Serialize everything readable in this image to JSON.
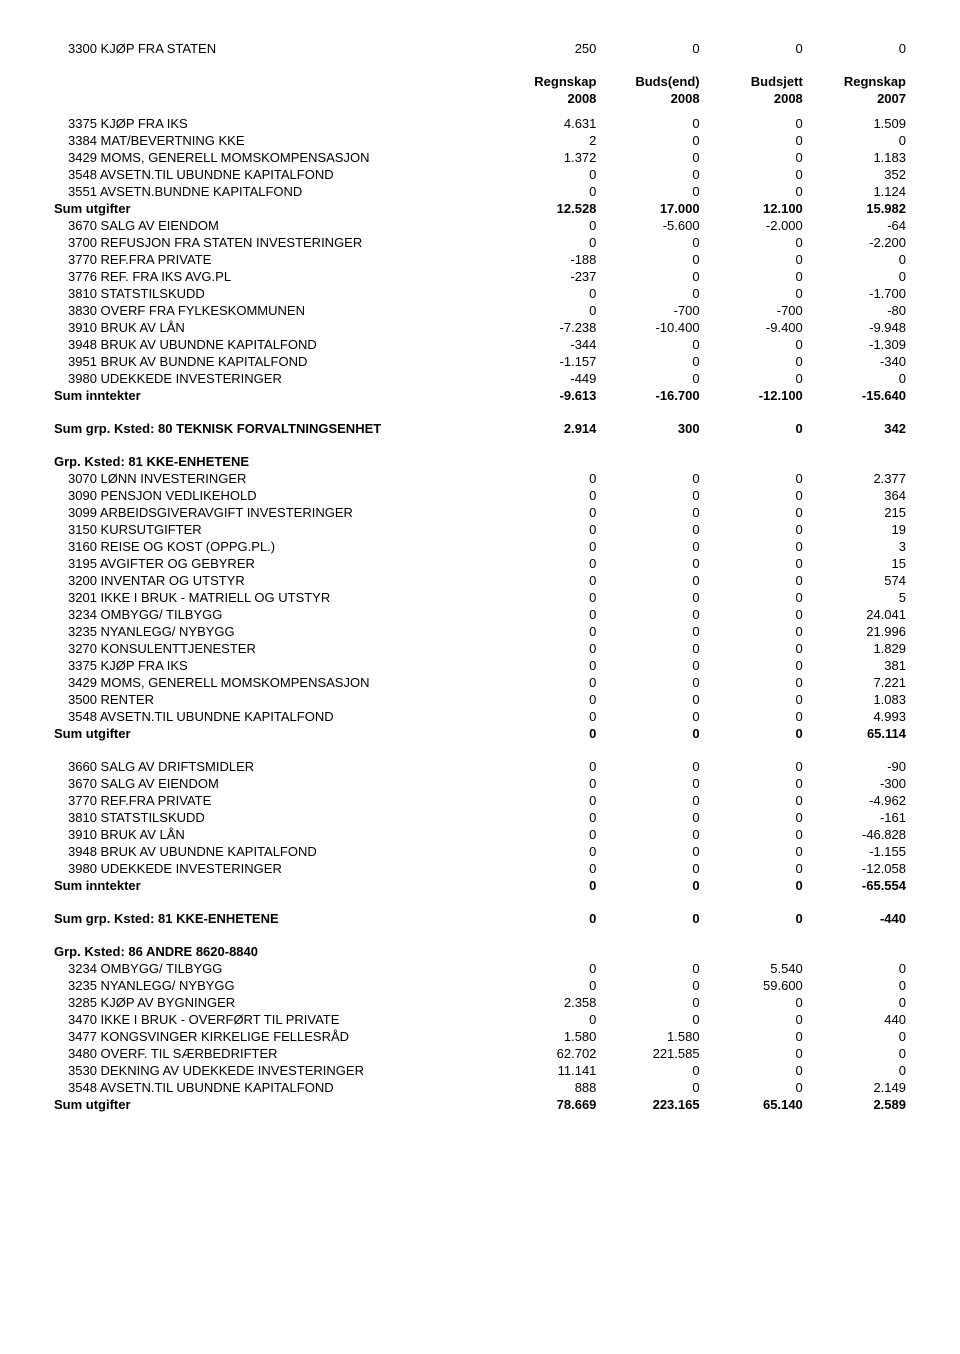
{
  "headers": {
    "c1a": "Regnskap",
    "c1b": "2008",
    "c2a": "Buds(end)",
    "c2b": "2008",
    "c3a": "Budsjett",
    "c3b": "2008",
    "c4a": "Regnskap",
    "c4b": "2007"
  },
  "top_row": {
    "label": "3300 KJØP FRA STATEN",
    "v1": "250",
    "v2": "0",
    "v3": "0",
    "v4": "0"
  },
  "block1": [
    {
      "label": "3375 KJØP FRA IKS",
      "v1": "4.631",
      "v2": "0",
      "v3": "0",
      "v4": "1.509"
    },
    {
      "label": "3384 MAT/BEVERTNING KKE",
      "v1": "2",
      "v2": "0",
      "v3": "0",
      "v4": "0"
    },
    {
      "label": "3429 MOMS, GENERELL MOMSKOMPENSASJON",
      "v1": "1.372",
      "v2": "0",
      "v3": "0",
      "v4": "1.183"
    },
    {
      "label": "3548 AVSETN.TIL UBUNDNE KAPITALFOND",
      "v1": "0",
      "v2": "0",
      "v3": "0",
      "v4": "352"
    },
    {
      "label": "3551 AVSETN.BUNDNE KAPITALFOND",
      "v1": "0",
      "v2": "0",
      "v3": "0",
      "v4": "1.124"
    }
  ],
  "block1_sum": {
    "label": "Sum utgifter",
    "v1": "12.528",
    "v2": "17.000",
    "v3": "12.100",
    "v4": "15.982"
  },
  "block2": [
    {
      "label": "3670 SALG AV EIENDOM",
      "v1": "0",
      "v2": "-5.600",
      "v3": "-2.000",
      "v4": "-64"
    },
    {
      "label": "3700 REFUSJON FRA STATEN INVESTERINGER",
      "v1": "0",
      "v2": "0",
      "v3": "0",
      "v4": "-2.200"
    },
    {
      "label": "3770 REF.FRA PRIVATE",
      "v1": "-188",
      "v2": "0",
      "v3": "0",
      "v4": "0"
    },
    {
      "label": "3776 REF. FRA IKS AVG.PL",
      "v1": "-237",
      "v2": "0",
      "v3": "0",
      "v4": "0"
    },
    {
      "label": "3810 STATSTILSKUDD",
      "v1": "0",
      "v2": "0",
      "v3": "0",
      "v4": "-1.700"
    },
    {
      "label": "3830 OVERF FRA FYLKESKOMMUNEN",
      "v1": "0",
      "v2": "-700",
      "v3": "-700",
      "v4": "-80"
    },
    {
      "label": "3910 BRUK AV LÅN",
      "v1": "-7.238",
      "v2": "-10.400",
      "v3": "-9.400",
      "v4": "-9.948"
    },
    {
      "label": "3948 BRUK AV UBUNDNE KAPITALFOND",
      "v1": "-344",
      "v2": "0",
      "v3": "0",
      "v4": "-1.309"
    },
    {
      "label": "3951 BRUK AV BUNDNE KAPITALFOND",
      "v1": "-1.157",
      "v2": "0",
      "v3": "0",
      "v4": "-340"
    },
    {
      "label": "3980 UDEKKEDE INVESTERINGER",
      "v1": "-449",
      "v2": "0",
      "v3": "0",
      "v4": "0"
    }
  ],
  "block2_sum": {
    "label": "Sum inntekter",
    "v1": "-9.613",
    "v2": "-16.700",
    "v3": "-12.100",
    "v4": "-15.640"
  },
  "grp80": {
    "label": "Sum grp. Ksted: 80 TEKNISK FORVALTNINGSENHET",
    "v1": "2.914",
    "v2": "300",
    "v3": "0",
    "v4": "342"
  },
  "grp81_title": "Grp. Ksted: 81 KKE-ENHETENE",
  "block3": [
    {
      "label": "3070 LØNN INVESTERINGER",
      "v1": "0",
      "v2": "0",
      "v3": "0",
      "v4": "2.377"
    },
    {
      "label": "3090 PENSJON VEDLIKEHOLD",
      "v1": "0",
      "v2": "0",
      "v3": "0",
      "v4": "364"
    },
    {
      "label": "3099 ARBEIDSGIVERAVGIFT INVESTERINGER",
      "v1": "0",
      "v2": "0",
      "v3": "0",
      "v4": "215"
    },
    {
      "label": "3150 KURSUTGIFTER",
      "v1": "0",
      "v2": "0",
      "v3": "0",
      "v4": "19"
    },
    {
      "label": "3160 REISE OG KOST (OPPG.PL.)",
      "v1": "0",
      "v2": "0",
      "v3": "0",
      "v4": "3"
    },
    {
      "label": "3195 AVGIFTER OG GEBYRER",
      "v1": "0",
      "v2": "0",
      "v3": "0",
      "v4": "15"
    },
    {
      "label": "3200 INVENTAR OG UTSTYR",
      "v1": "0",
      "v2": "0",
      "v3": "0",
      "v4": "574"
    },
    {
      "label": "3201 IKKE I BRUK - MATRIELL OG UTSTYR",
      "v1": "0",
      "v2": "0",
      "v3": "0",
      "v4": "5"
    },
    {
      "label": "3234 OMBYGG/ TILBYGG",
      "v1": "0",
      "v2": "0",
      "v3": "0",
      "v4": "24.041"
    },
    {
      "label": "3235 NYANLEGG/ NYBYGG",
      "v1": "0",
      "v2": "0",
      "v3": "0",
      "v4": "21.996"
    },
    {
      "label": "3270 KONSULENTTJENESTER",
      "v1": "0",
      "v2": "0",
      "v3": "0",
      "v4": "1.829"
    },
    {
      "label": "3375 KJØP FRA IKS",
      "v1": "0",
      "v2": "0",
      "v3": "0",
      "v4": "381"
    },
    {
      "label": "3429 MOMS, GENERELL MOMSKOMPENSASJON",
      "v1": "0",
      "v2": "0",
      "v3": "0",
      "v4": "7.221"
    },
    {
      "label": "3500 RENTER",
      "v1": "0",
      "v2": "0",
      "v3": "0",
      "v4": "1.083"
    },
    {
      "label": "3548 AVSETN.TIL UBUNDNE KAPITALFOND",
      "v1": "0",
      "v2": "0",
      "v3": "0",
      "v4": "4.993"
    }
  ],
  "block3_sum": {
    "label": "Sum utgifter",
    "v1": "0",
    "v2": "0",
    "v3": "0",
    "v4": "65.114"
  },
  "block4": [
    {
      "label": "3660 SALG AV DRIFTSMIDLER",
      "v1": "0",
      "v2": "0",
      "v3": "0",
      "v4": "-90"
    },
    {
      "label": "3670 SALG AV EIENDOM",
      "v1": "0",
      "v2": "0",
      "v3": "0",
      "v4": "-300"
    },
    {
      "label": "3770 REF.FRA PRIVATE",
      "v1": "0",
      "v2": "0",
      "v3": "0",
      "v4": "-4.962"
    },
    {
      "label": "3810 STATSTILSKUDD",
      "v1": "0",
      "v2": "0",
      "v3": "0",
      "v4": "-161"
    },
    {
      "label": "3910 BRUK AV LÅN",
      "v1": "0",
      "v2": "0",
      "v3": "0",
      "v4": "-46.828"
    },
    {
      "label": "3948 BRUK AV UBUNDNE KAPITALFOND",
      "v1": "0",
      "v2": "0",
      "v3": "0",
      "v4": "-1.155"
    },
    {
      "label": "3980 UDEKKEDE INVESTERINGER",
      "v1": "0",
      "v2": "0",
      "v3": "0",
      "v4": "-12.058"
    }
  ],
  "block4_sum": {
    "label": "Sum inntekter",
    "v1": "0",
    "v2": "0",
    "v3": "0",
    "v4": "-65.554"
  },
  "grp81_sum": {
    "label": "Sum grp. Ksted: 81 KKE-ENHETENE",
    "v1": "0",
    "v2": "0",
    "v3": "0",
    "v4": "-440"
  },
  "grp86_title": "Grp. Ksted: 86 ANDRE 8620-8840",
  "block5": [
    {
      "label": "3234 OMBYGG/ TILBYGG",
      "v1": "0",
      "v2": "0",
      "v3": "5.540",
      "v4": "0"
    },
    {
      "label": "3235 NYANLEGG/ NYBYGG",
      "v1": "0",
      "v2": "0",
      "v3": "59.600",
      "v4": "0"
    },
    {
      "label": "3285 KJØP AV BYGNINGER",
      "v1": "2.358",
      "v2": "0",
      "v3": "0",
      "v4": "0"
    },
    {
      "label": "3470 IKKE I BRUK - OVERFØRT TIL PRIVATE",
      "v1": "0",
      "v2": "0",
      "v3": "0",
      "v4": "440"
    },
    {
      "label": "3477 KONGSVINGER KIRKELIGE FELLESRÅD",
      "v1": "1.580",
      "v2": "1.580",
      "v3": "0",
      "v4": "0"
    },
    {
      "label": "3480 OVERF. TIL SÆRBEDRIFTER",
      "v1": "62.702",
      "v2": "221.585",
      "v3": "0",
      "v4": "0"
    },
    {
      "label": "3530 DEKNING AV UDEKKEDE INVESTERINGER",
      "v1": "11.141",
      "v2": "0",
      "v3": "0",
      "v4": "0"
    },
    {
      "label": "3548 AVSETN.TIL UBUNDNE KAPITALFOND",
      "v1": "888",
      "v2": "0",
      "v3": "0",
      "v4": "2.149"
    }
  ],
  "block5_sum": {
    "label": "Sum utgifter",
    "v1": "78.669",
    "v2": "223.165",
    "v3": "65.140",
    "v4": "2.589"
  }
}
